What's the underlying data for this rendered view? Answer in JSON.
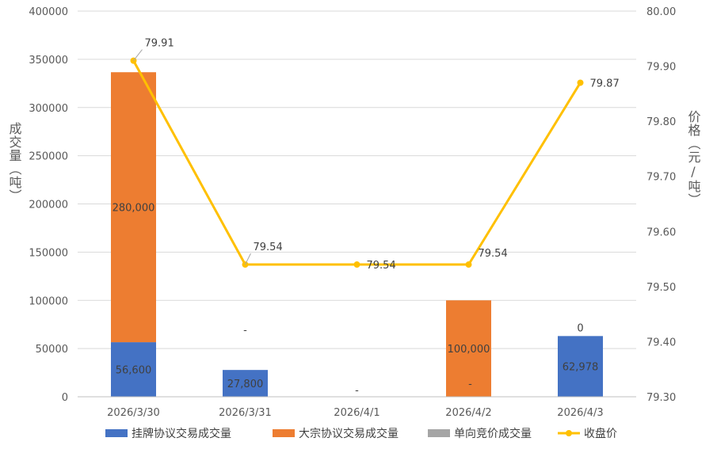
{
  "chart_data": {
    "type": "bar+line",
    "categories": [
      "2026/3/30",
      "2026/3/31",
      "2026/4/1",
      "2026/4/2",
      "2026/4/3"
    ],
    "bar_series": [
      {
        "name": "挂牌协议交易成交量",
        "color": "#4472C4",
        "values": [
          56600,
          27800,
          0,
          0,
          62978
        ],
        "labels": [
          "56,600",
          "27,800",
          "",
          "-",
          "62,978"
        ]
      },
      {
        "name": "大宗协议交易成交量",
        "color": "#ED7D31",
        "values": [
          280000,
          0,
          0,
          100000,
          0
        ],
        "labels": [
          "280,000",
          "-",
          "-",
          "100,000",
          "0"
        ]
      },
      {
        "name": "单向竞价成交量",
        "color": "#A5A5A5",
        "values": [
          0,
          0,
          0,
          0,
          0
        ],
        "labels": [
          "",
          "",
          "",
          "",
          ""
        ]
      }
    ],
    "line_series": {
      "name": "收盘价",
      "color": "#FFC000",
      "values": [
        79.91,
        79.54,
        79.54,
        79.54,
        79.87
      ],
      "labels": [
        "79.91",
        "79.54",
        "79.54",
        "79.54",
        "79.87"
      ]
    },
    "y_left": {
      "label": "成交量（吨）",
      "min": 0,
      "max": 400000,
      "ticks": [
        "0",
        "50000",
        "100000",
        "150000",
        "200000",
        "250000",
        "300000",
        "350000",
        "400000"
      ]
    },
    "y_right": {
      "label": "价格（元/吨）",
      "min": 79.3,
      "max": 80.0,
      "ticks": [
        "79.30",
        "79.40",
        "79.50",
        "79.60",
        "79.70",
        "79.80",
        "79.90",
        "80.00"
      ]
    },
    "grid": true,
    "legend_position": "bottom"
  }
}
